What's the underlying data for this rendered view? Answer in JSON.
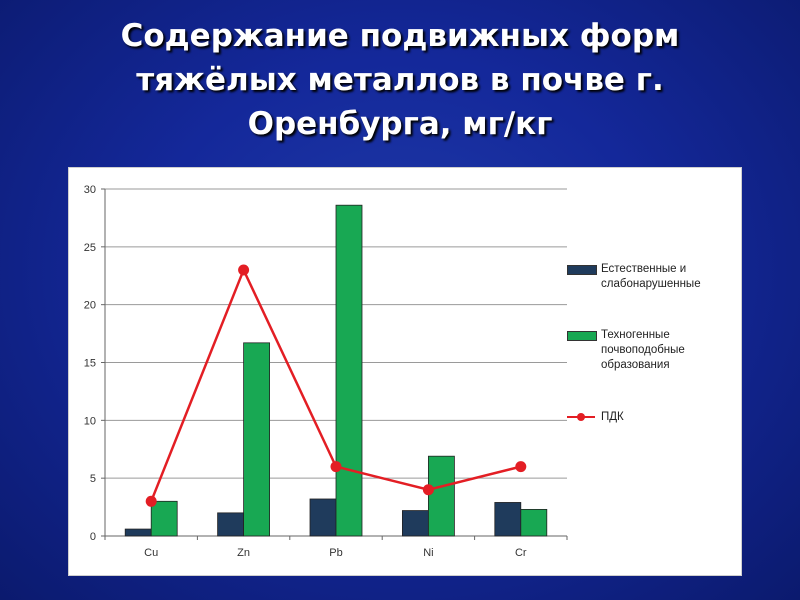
{
  "title_lines": [
    "Содержание подвижных форм",
    "тяжёлых металлов в почве г.",
    "Оренбурга, мг/кг"
  ],
  "colors": {
    "background": "#14289a",
    "series_natural": "#1f3b5c",
    "series_technogenic": "#18a853",
    "series_pdk": "#e31e24"
  },
  "chart_data": {
    "type": "bar",
    "title": "Содержание подвижных форм тяжёлых металлов в почве г. Оренбурга, мг/кг",
    "categories": [
      "Cu",
      "Zn",
      "Pb",
      "Ni",
      "Cr"
    ],
    "ylim": [
      0,
      30
    ],
    "yticks": [
      0,
      5,
      10,
      15,
      20,
      25,
      30
    ],
    "grid": true,
    "legend_position": "right",
    "series": [
      {
        "name": "Естественные и слабонарушенные",
        "type": "bar",
        "color": "#1f3b5c",
        "values": [
          0.6,
          2.0,
          3.2,
          2.2,
          2.9
        ]
      },
      {
        "name": "Техногенные почвоподобные образования",
        "type": "bar",
        "color": "#18a853",
        "values": [
          3.0,
          16.7,
          28.6,
          6.9,
          2.3
        ]
      },
      {
        "name": "ПДК",
        "type": "line",
        "color": "#e31e24",
        "values": [
          3,
          23,
          6,
          4,
          6
        ]
      }
    ]
  },
  "legend": [
    {
      "lines": [
        "Естественные и",
        "слабонарушенные"
      ],
      "color": "#1f3b5c",
      "kind": "bar"
    },
    {
      "lines": [
        "Техногенные",
        "почвоподобные",
        "образования"
      ],
      "color": "#18a853",
      "kind": "bar"
    },
    {
      "lines": [
        "ПДК"
      ],
      "color": "#e31e24",
      "kind": "line"
    }
  ]
}
